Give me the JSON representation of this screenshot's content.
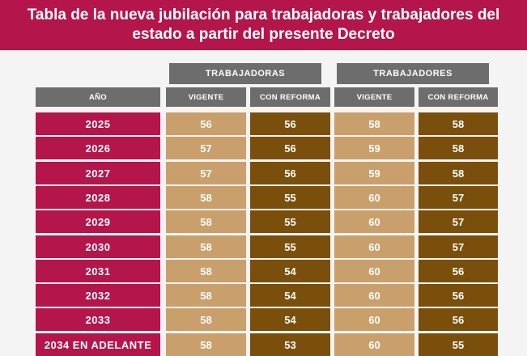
{
  "title": {
    "line1": "Tabla de la nueva jubilación para trabajadoras y trabajadores del",
    "line2": "estado a partir del presente Decreto"
  },
  "groups": {
    "women": "TRABAJADORAS",
    "men": "TRABAJADORES"
  },
  "columns": {
    "year": "AÑO",
    "women_current": "VIGENTE",
    "women_reform": "CON REFORMA",
    "men_current": "VIGENTE",
    "men_reform": "CON REFORMA"
  },
  "colors": {
    "banner": "#b4154b",
    "year_cells": "#b4154b",
    "header_gray": "#6d6d6d",
    "current_tan": "#c9a06b",
    "reform_brown": "#7a4f0b"
  },
  "rows": [
    {
      "year": "2025",
      "women_current": "56",
      "women_reform": "56",
      "men_current": "58",
      "men_reform": "58"
    },
    {
      "year": "2026",
      "women_current": "57",
      "women_reform": "56",
      "men_current": "59",
      "men_reform": "58"
    },
    {
      "year": "2027",
      "women_current": "57",
      "women_reform": "56",
      "men_current": "59",
      "men_reform": "58"
    },
    {
      "year": "2028",
      "women_current": "58",
      "women_reform": "55",
      "men_current": "60",
      "men_reform": "57"
    },
    {
      "year": "2029",
      "women_current": "58",
      "women_reform": "55",
      "men_current": "60",
      "men_reform": "57"
    },
    {
      "year": "2030",
      "women_current": "58",
      "women_reform": "55",
      "men_current": "60",
      "men_reform": "57"
    },
    {
      "year": "2031",
      "women_current": "58",
      "women_reform": "54",
      "men_current": "60",
      "men_reform": "56"
    },
    {
      "year": "2032",
      "women_current": "58",
      "women_reform": "54",
      "men_current": "60",
      "men_reform": "56"
    },
    {
      "year": "2033",
      "women_current": "58",
      "women_reform": "54",
      "men_current": "60",
      "men_reform": "56"
    },
    {
      "year": "2034 EN ADELANTE",
      "women_current": "58",
      "women_reform": "53",
      "men_current": "60",
      "men_reform": "55"
    }
  ]
}
